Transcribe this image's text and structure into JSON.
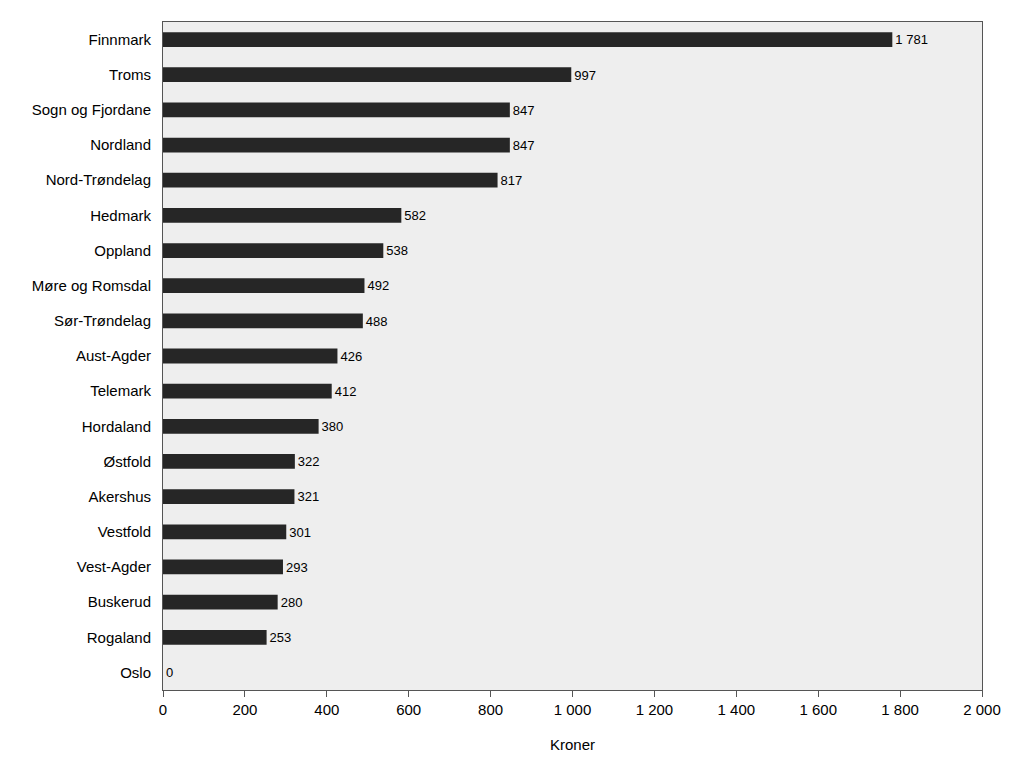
{
  "chart_data": {
    "type": "bar",
    "orientation": "horizontal",
    "categories": [
      "Finnmark",
      "Troms",
      "Sogn og Fjordane",
      "Nordland",
      "Nord-Trøndelag",
      "Hedmark",
      "Oppland",
      "Møre og Romsdal",
      "Sør-Trøndelag",
      "Aust-Agder",
      "Telemark",
      "Hordaland",
      "Østfold",
      "Akershus",
      "Vestfold",
      "Vest-Agder",
      "Buskerud",
      "Rogaland",
      "Oslo"
    ],
    "values": [
      1781,
      997,
      847,
      847,
      817,
      582,
      538,
      492,
      488,
      426,
      412,
      380,
      322,
      321,
      301,
      293,
      280,
      253,
      0
    ],
    "value_labels": [
      "1 781",
      "997",
      "847",
      "847",
      "817",
      "582",
      "538",
      "492",
      "488",
      "426",
      "412",
      "380",
      "322",
      "321",
      "301",
      "293",
      "280",
      "253",
      "0"
    ],
    "data_labels": true,
    "color": "#262626",
    "x_label": "Kroner",
    "xlim": [
      0,
      2000
    ],
    "xticks": [
      0,
      200,
      400,
      600,
      800,
      {
        "value": 1000,
        "label": "1 000"
      },
      {
        "value": 1200,
        "label": "1 200"
      },
      {
        "value": 1400,
        "label": "1 400"
      },
      {
        "value": 1600,
        "label": "1 600"
      },
      {
        "value": 1800,
        "label": "1 800"
      },
      {
        "value": 2000,
        "label": "2 000"
      }
    ],
    "grid": false
  }
}
